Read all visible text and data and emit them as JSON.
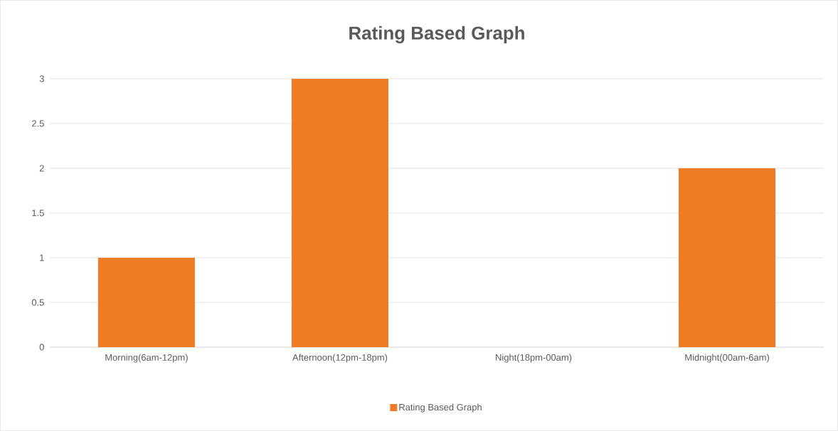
{
  "chart_data": {
    "type": "bar",
    "title": "Rating Based Graph",
    "categories": [
      "Morning(6am-12pm)",
      "Afternoon(12pm-18pm)",
      "Night(18pm-00am)",
      "Midnight(00am-6am)"
    ],
    "series": [
      {
        "name": "Rating Based Graph",
        "color": "#f07b25",
        "values": [
          1,
          3,
          0,
          2
        ]
      }
    ],
    "ylim": [
      0,
      3
    ],
    "yticks": [
      0,
      0.5,
      1,
      1.5,
      2,
      2.5,
      3
    ],
    "grid": "y",
    "legend": "bottom"
  }
}
